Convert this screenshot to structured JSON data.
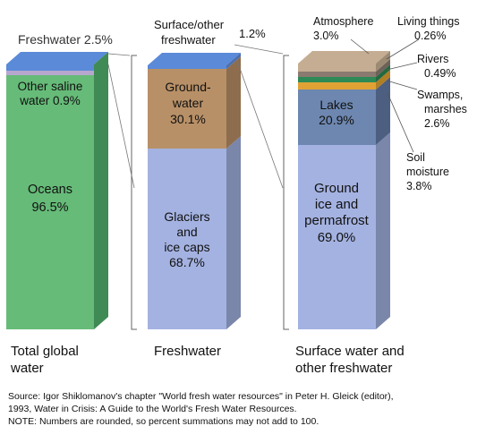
{
  "colors": {
    "oceans": "#66bb78",
    "other_saline": "#b7a7cf",
    "freshwater_top": "#5b8ad8",
    "groundwater": "#b89067",
    "glaciers": "#a4b2e1",
    "surface_other": "#5b8ad8",
    "lakes": "#6d87b0",
    "swamps": "#e0a235",
    "rivers": "#2d8a56",
    "living": "#8a7a70",
    "atmosphere": "#c4ad92",
    "soil": "#a4b2e1",
    "frozen": "#a4b2e1",
    "bracket": "#666666",
    "text": "#111111"
  },
  "chart_data": [
    {
      "type": "stacked-bar",
      "caption": "Total global water",
      "segments": [
        {
          "name": "Oceans",
          "value": 96.5,
          "label": "96.5%",
          "color": "#66bb78"
        },
        {
          "name": "Other saline water",
          "value": 0.9,
          "label": "0.9%",
          "color": "#b7a7cf"
        },
        {
          "name": "Freshwater",
          "value": 2.5,
          "label": "2.5%",
          "color": "#5b8ad8"
        }
      ]
    },
    {
      "type": "stacked-bar",
      "caption": "Freshwater",
      "segments": [
        {
          "name": "Glaciers and ice caps",
          "value": 68.7,
          "label": "68.7%",
          "color": "#a4b2e1"
        },
        {
          "name": "Groundwater",
          "value": 30.1,
          "label": "30.1%",
          "color": "#b89067"
        },
        {
          "name": "Surface/other freshwater",
          "value": 1.2,
          "label": "1.2%",
          "color": "#5b8ad8"
        }
      ]
    },
    {
      "type": "stacked-bar",
      "caption": "Surface water and other freshwater",
      "segments": [
        {
          "name": "Ground ice and permafrost",
          "value": 69.0,
          "label": "69.0%",
          "color": "#a4b2e1"
        },
        {
          "name": "Lakes",
          "value": 20.9,
          "label": "20.9%",
          "color": "#6d87b0"
        },
        {
          "name": "Soil moisture",
          "value": 3.8,
          "label": "3.8%",
          "color": "#a4b2e1"
        },
        {
          "name": "Swamps, marshes",
          "value": 2.6,
          "label": "2.6%",
          "color": "#e0a235"
        },
        {
          "name": "Rivers",
          "value": 0.49,
          "label": "0.49%",
          "color": "#2d8a56"
        },
        {
          "name": "Living things",
          "value": 0.26,
          "label": "0.26%",
          "color": "#8a7a70"
        },
        {
          "name": "Atmosphere",
          "value": 3.0,
          "label": "3.0%",
          "color": "#c4ad92"
        }
      ]
    }
  ],
  "labels": {
    "freshwater": "Freshwater 2.5%",
    "other_saline_1": "Other saline",
    "other_saline_2": "water 0.9%",
    "oceans_1": "Oceans",
    "oceans_2": "96.5%",
    "surface_1": "Surface/other",
    "surface_2": "freshwater",
    "surface_3": "1.2%",
    "ground_1": "Ground-",
    "ground_2": "water",
    "ground_3": "30.1%",
    "glaciers_1": "Glaciers",
    "glaciers_2": "and",
    "glaciers_3": "ice caps",
    "glaciers_4": "68.7%",
    "atmosphere_1": "Atmosphere",
    "atmosphere_2": "3.0%",
    "living_1": "Living things",
    "living_2": "0.26%",
    "rivers_1": "Rivers",
    "rivers_2": "0.49%",
    "swamps_1": "Swamps,",
    "swamps_2": "marshes",
    "swamps_3": "2.6%",
    "soil_1": "Soil",
    "soil_2": "moisture",
    "soil_3": "3.8%",
    "lakes_1": "Lakes",
    "lakes_2": "20.9%",
    "frozen_1": "Ground",
    "frozen_2": "ice and",
    "frozen_3": "permafrost",
    "frozen_4": "69.0%",
    "caption1_1": "Total global",
    "caption1_2": "water",
    "caption2": "Freshwater",
    "caption3_1": "Surface water and",
    "caption3_2": "other freshwater"
  },
  "source": {
    "line1": "Source: Igor Shiklomanov's chapter \"World fresh water resources\" in Peter H. Gleick (editor),",
    "line2": "1993, Water in Crisis: A Guide to the World's Fresh Water Resources.",
    "line3": "NOTE: Numbers are rounded, so percent summations may not add to 100."
  }
}
